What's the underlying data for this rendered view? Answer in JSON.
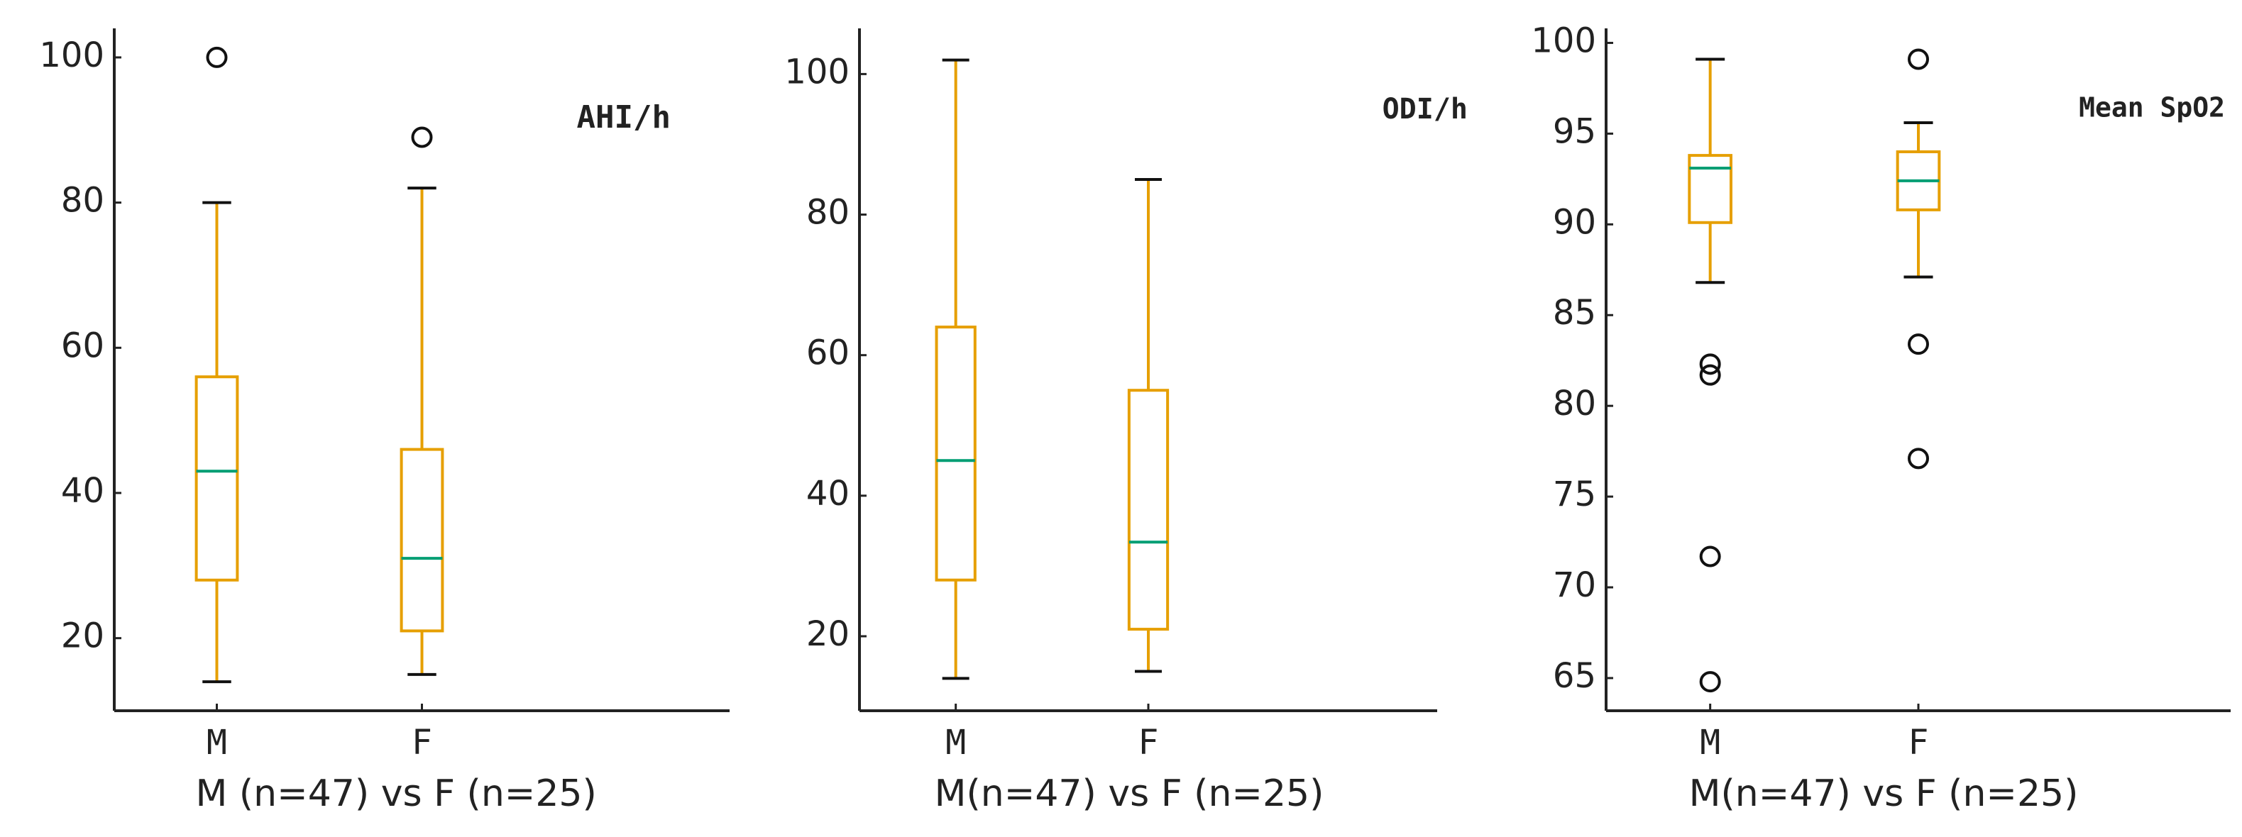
{
  "chart_data": [
    {
      "type": "box",
      "annotation": "AHI/h",
      "xlabel": "M (n=47) vs F (n=25)",
      "categories": [
        "M",
        "F"
      ],
      "boxes": [
        {
          "whislo": 14,
          "q1": 28,
          "med": 43,
          "q3": 56,
          "whishi": 80,
          "fliers": [
            100
          ]
        },
        {
          "whislo": 15,
          "q1": 21,
          "med": 31,
          "q3": 46,
          "whishi": 82,
          "fliers": [
            89
          ]
        }
      ],
      "ylim": [
        10,
        104
      ],
      "yticks": [
        20,
        40,
        60,
        80,
        100
      ],
      "box_color": "#e69f00",
      "median_color": "#009e73"
    },
    {
      "type": "box",
      "annotation": "ODI/h",
      "xlabel": "M(n=47) vs F (n=25)",
      "categories": [
        "M",
        "F"
      ],
      "boxes": [
        {
          "whislo": 14,
          "q1": 28,
          "med": 45,
          "q3": 64,
          "whishi": 102,
          "fliers": []
        },
        {
          "whislo": 15,
          "q1": 21,
          "med": 33.4,
          "q3": 55,
          "whishi": 85,
          "fliers": []
        }
      ],
      "ylim": [
        9.4,
        106.5
      ],
      "yticks": [
        20,
        40,
        60,
        80,
        100
      ],
      "box_color": "#e69f00",
      "median_color": "#009e73"
    },
    {
      "type": "box",
      "annotation": "Mean SpO2",
      "xlabel": "M(n=47) vs F (n=25)",
      "categories": [
        "M",
        "F"
      ],
      "boxes": [
        {
          "whislo": 86.8,
          "q1": 90.1,
          "med": 93.1,
          "q3": 93.8,
          "whishi": 99.1,
          "fliers": [
            82.3,
            81.7,
            71.7,
            64.8
          ]
        },
        {
          "whislo": 87.1,
          "q1": 90.8,
          "med": 92.4,
          "q3": 94.0,
          "whishi": 95.6,
          "fliers": [
            99.1,
            83.4,
            77.1
          ]
        }
      ],
      "ylim": [
        63.2,
        100.8
      ],
      "yticks": [
        65,
        70,
        75,
        80,
        85,
        90,
        95,
        100
      ],
      "box_color": "#e69f00",
      "median_color": "#009e73"
    }
  ]
}
